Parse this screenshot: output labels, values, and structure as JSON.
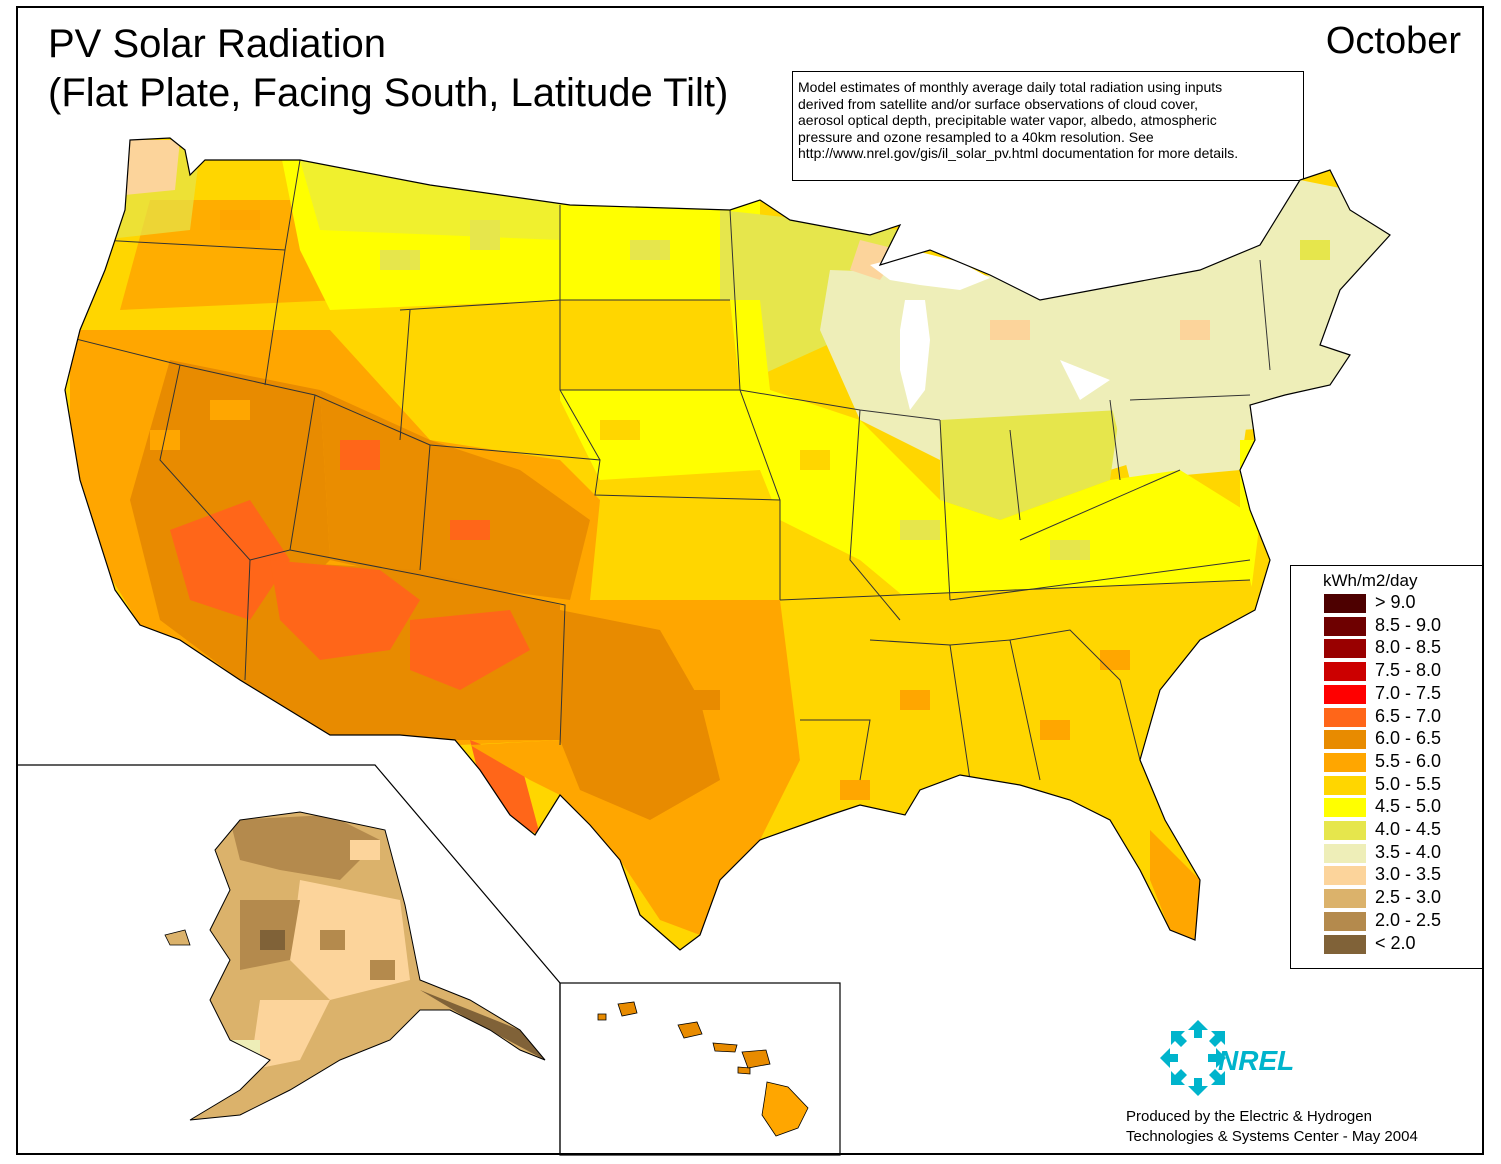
{
  "title": {
    "line1": "PV Solar Radiation",
    "line2": "(Flat Plate, Facing South, Latitude Tilt)"
  },
  "month": "October",
  "notes": "Model estimates of monthly average daily total radiation using inputs\nderived from satellite and/or surface observations of cloud cover,\naerosol optical depth, precipitable water vapor, albedo, atmospheric\npressure and ozone resampled to a 40km resolution.  See\nhttp://www.nrel.gov/gis/il_solar_pv.html documentation for more details.",
  "legend": {
    "title": "kWh/m2/day",
    "items": [
      {
        "label": "> 9.0",
        "color": "#4d0000"
      },
      {
        "label": "8.5 - 9.0",
        "color": "#6e0000"
      },
      {
        "label": "8.0 - 8.5",
        "color": "#990000"
      },
      {
        "label": "7.5 - 8.0",
        "color": "#cc0000"
      },
      {
        "label": "7.0 - 7.5",
        "color": "#ff0000"
      },
      {
        "label": "6.5 - 7.0",
        "color": "#ff6619"
      },
      {
        "label": "6.0 - 6.5",
        "color": "#e88b00"
      },
      {
        "label": "5.5 - 6.0",
        "color": "#ffa600"
      },
      {
        "label": "5.0 - 5.5",
        "color": "#ffd600"
      },
      {
        "label": "4.5 - 5.0",
        "color": "#ffff00"
      },
      {
        "label": "4.0 - 4.5",
        "color": "#e6e64c"
      },
      {
        "label": "3.5 - 4.0",
        "color": "#eeeeb8"
      },
      {
        "label": "3.0 - 3.5",
        "color": "#fcd49b"
      },
      {
        "label": "2.5 - 3.0",
        "color": "#dbb26b"
      },
      {
        "label": "2.0 - 2.5",
        "color": "#b48a4d"
      },
      {
        "label": "< 2.0",
        "color": "#806238"
      }
    ]
  },
  "logo": {
    "text": "NREL",
    "color": "#00b4cc"
  },
  "credits": "Produced by the Electric & Hydrogen\nTechnologies & Systems Center - May 2004"
}
